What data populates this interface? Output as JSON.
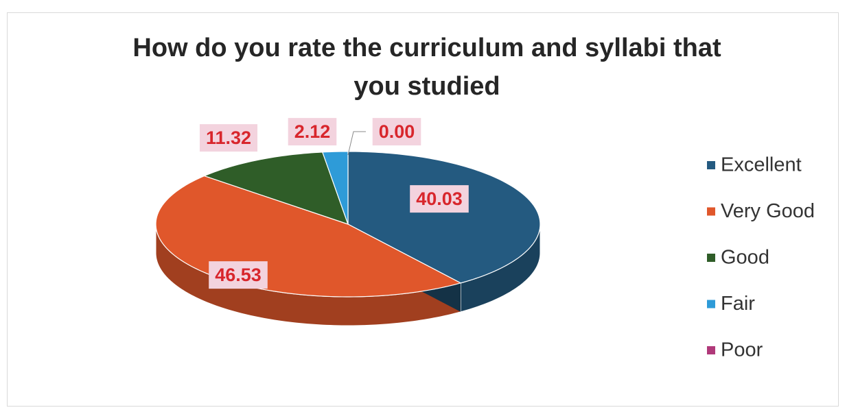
{
  "chart_data": {
    "type": "pie",
    "title": "How do you rate the curriculum and syllabi that you studied",
    "categories": [
      "Excellent",
      "Very Good",
      "Good",
      "Fair",
      "Poor"
    ],
    "values": [
      40.03,
      46.53,
      11.32,
      2.12,
      0.0
    ],
    "value_labels": [
      "40.03",
      "46.53",
      "11.32",
      "2.12",
      "0.00"
    ],
    "colors": [
      "#245a80",
      "#e0572b",
      "#2f5d28",
      "#2e9bd8",
      "#b0397a"
    ],
    "legend": "right"
  }
}
